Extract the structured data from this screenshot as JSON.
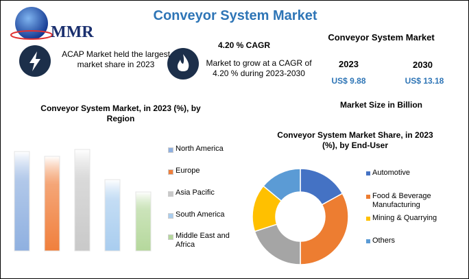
{
  "logo": "MMR",
  "title": "Conveyor System Market",
  "highlights": [
    {
      "text": "ACAP Market held the largest market share in 2023"
    },
    {
      "heading": "4.20 % CAGR",
      "text": "Market to grow at a CAGR of 4.20 % during 2023-2030"
    }
  ],
  "market_size": {
    "title": "Conveyor System Market",
    "years": [
      "2023",
      "2030"
    ],
    "values": [
      "US$ 9.88",
      "US$ 13.18"
    ],
    "caption": "Market Size in Billion"
  },
  "chart_data": [
    {
      "type": "bar",
      "title": "Conveyor System Market, in 2023 (%), by Region",
      "categories": [
        "North America",
        "Europe",
        "Asia Pacific",
        "South America",
        "Middle East and Africa"
      ],
      "values": [
        145,
        138,
        148,
        104,
        86
      ],
      "colors": [
        "#8fb0e0",
        "#f07f3c",
        "#c9c9c9",
        "#a9cdef",
        "#b5d89c"
      ],
      "ylim": [
        0,
        150
      ]
    },
    {
      "type": "donut",
      "title": "Conveyor System Market Share, in 2023 (%), by End-User",
      "categories": [
        "Automotive",
        "Food & Beverage Manufacturing",
        null,
        "Mining & Quarrying",
        "Others"
      ],
      "values": [
        17,
        33,
        20,
        16,
        14
      ],
      "colors": [
        "#4472c4",
        "#ed7d31",
        "#a5a5a5",
        "#ffc000",
        "#5b9bd5"
      ]
    }
  ]
}
